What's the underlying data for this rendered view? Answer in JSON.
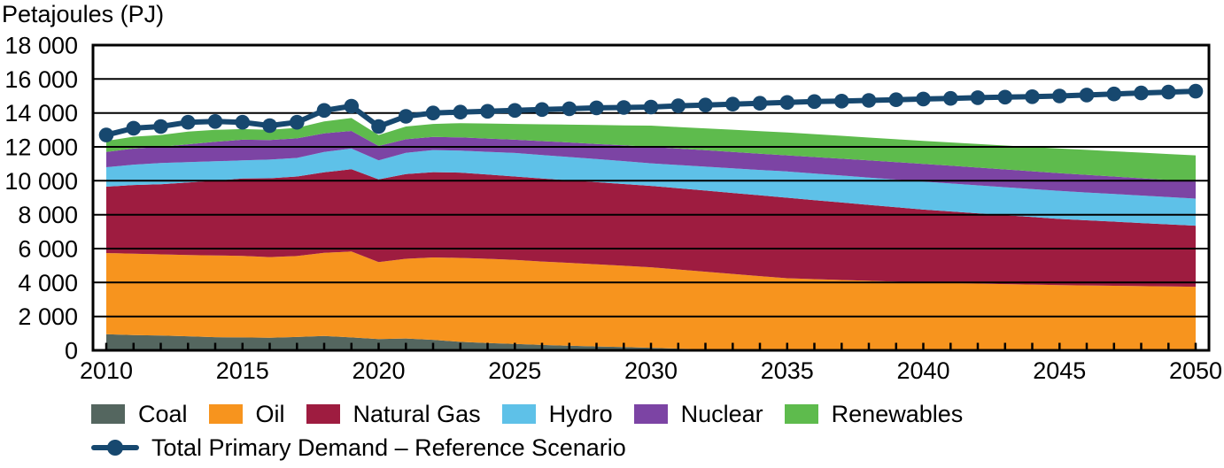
{
  "title": "Petajoules (PJ)",
  "chart_data": {
    "type": "area",
    "stacked": true,
    "title": "Petajoules (PJ)",
    "ylabel": "Petajoules (PJ)",
    "ylim": [
      0,
      18000
    ],
    "y_tick_step": 2000,
    "grid": true,
    "legend_position": "bottom",
    "y_tick_labels": [
      "0",
      "2 000",
      "4 000",
      "6 000",
      "8 000",
      "10 000",
      "12 000",
      "14 000",
      "16 000",
      "18 000"
    ],
    "x_tick_years": [
      2010,
      2015,
      2020,
      2025,
      2030,
      2035,
      2040,
      2045,
      2050
    ],
    "x": [
      2010,
      2011,
      2012,
      2013,
      2014,
      2015,
      2016,
      2017,
      2018,
      2019,
      2020,
      2021,
      2022,
      2023,
      2024,
      2025,
      2026,
      2027,
      2028,
      2029,
      2030,
      2031,
      2032,
      2033,
      2034,
      2035,
      2036,
      2037,
      2038,
      2039,
      2040,
      2041,
      2042,
      2043,
      2044,
      2045,
      2046,
      2047,
      2048,
      2049,
      2050
    ],
    "series": [
      {
        "name": "Coal",
        "color": "#54665F",
        "values": [
          950,
          900,
          870,
          830,
          780,
          760,
          740,
          790,
          850,
          760,
          670,
          700,
          620,
          500,
          430,
          380,
          320,
          270,
          230,
          200,
          150,
          100,
          60,
          30,
          10,
          0,
          0,
          0,
          0,
          0,
          0,
          0,
          0,
          0,
          0,
          0,
          0,
          0,
          0,
          0,
          0
        ]
      },
      {
        "name": "Oil",
        "color": "#F7941E",
        "values": [
          4790,
          4800,
          4790,
          4790,
          4820,
          4810,
          4760,
          4770,
          4900,
          5070,
          4530,
          4700,
          4860,
          4950,
          4970,
          4950,
          4920,
          4890,
          4840,
          4790,
          4750,
          4670,
          4580,
          4480,
          4370,
          4250,
          4200,
          4150,
          4100,
          4050,
          4000,
          3970,
          3940,
          3910,
          3880,
          3850,
          3830,
          3810,
          3790,
          3770,
          3750
        ]
      },
      {
        "name": "Natural Gas",
        "color": "#9E1C40",
        "values": [
          3910,
          4050,
          4140,
          4280,
          4400,
          4560,
          4650,
          4690,
          4750,
          4850,
          4880,
          5000,
          5030,
          5030,
          4970,
          4920,
          4900,
          4870,
          4850,
          4820,
          4800,
          4790,
          4780,
          4770,
          4760,
          4750,
          4660,
          4570,
          4480,
          4390,
          4300,
          4220,
          4140,
          4060,
          3980,
          3900,
          3840,
          3780,
          3720,
          3660,
          3600
        ]
      },
      {
        "name": "Hydro",
        "color": "#5EC1E8",
        "values": [
          1150,
          1200,
          1250,
          1200,
          1150,
          1070,
          1100,
          1100,
          1200,
          1220,
          1120,
          1250,
          1300,
          1300,
          1340,
          1390,
          1380,
          1370,
          1360,
          1350,
          1330,
          1370,
          1410,
          1450,
          1500,
          1550,
          1570,
          1590,
          1610,
          1630,
          1650,
          1650,
          1650,
          1650,
          1650,
          1650,
          1640,
          1630,
          1620,
          1610,
          1600
        ]
      },
      {
        "name": "Nuclear",
        "color": "#7C44A4",
        "values": [
          900,
          950,
          950,
          1050,
          1150,
          1220,
          1150,
          1150,
          1100,
          1040,
          850,
          800,
          780,
          780,
          780,
          780,
          820,
          860,
          890,
          930,
          970,
          970,
          970,
          970,
          960,
          950,
          970,
          990,
          1010,
          1030,
          1050,
          1050,
          1050,
          1050,
          1050,
          1050,
          1040,
          1030,
          1020,
          1010,
          1000
        ]
      },
      {
        "name": "Renewables",
        "color": "#5EBB4D",
        "values": [
          650,
          700,
          700,
          750,
          700,
          630,
          600,
          620,
          700,
          760,
          650,
          750,
          760,
          840,
          890,
          930,
          990,
          1050,
          1120,
          1180,
          1250,
          1270,
          1290,
          1310,
          1330,
          1350,
          1350,
          1350,
          1350,
          1350,
          1350,
          1370,
          1390,
          1410,
          1430,
          1450,
          1470,
          1490,
          1510,
          1530,
          1550
        ]
      }
    ],
    "line_series": {
      "name": "Total Primary Demand – Reference Scenario",
      "color": "#17486F",
      "values": [
        12700,
        13100,
        13200,
        13450,
        13500,
        13450,
        13250,
        13450,
        14150,
        14400,
        13200,
        13800,
        14000,
        14050,
        14100,
        14150,
        14200,
        14250,
        14300,
        14320,
        14350,
        14420,
        14470,
        14520,
        14570,
        14620,
        14670,
        14700,
        14740,
        14780,
        14820,
        14860,
        14900,
        14930,
        14960,
        15000,
        15060,
        15120,
        15180,
        15230,
        15280
      ]
    }
  }
}
